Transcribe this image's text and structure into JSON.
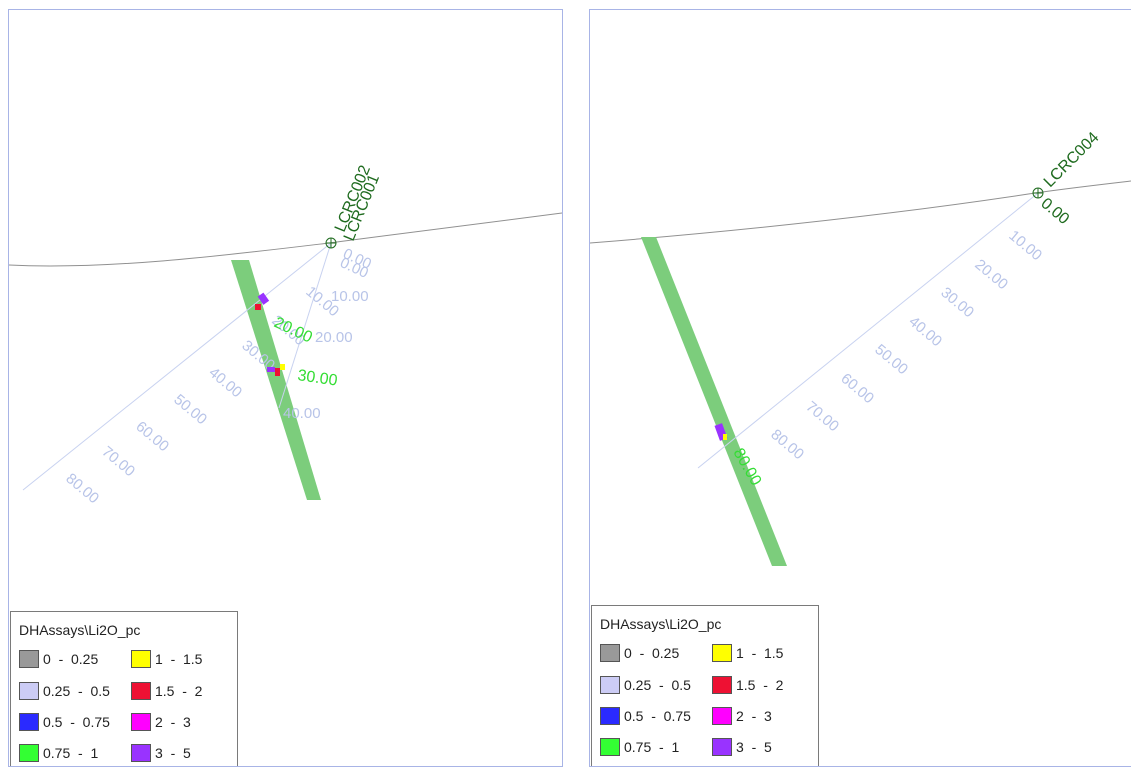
{
  "left": {
    "holes": [
      {
        "name": "LCRC002"
      },
      {
        "name": "LCRC001"
      }
    ],
    "collar_depth": "0.00",
    "collar_depth_2": "0.00",
    "depth_ticks_a": [
      "10.00",
      "20.00",
      "30.00",
      "40.00",
      "50.00",
      "60.00",
      "70.00",
      "80.00"
    ],
    "depth_ticks_b": [
      "10.00",
      "20.00",
      "40.00"
    ],
    "intercepts": [
      "20.00",
      "30.00"
    ]
  },
  "right": {
    "holes": [
      {
        "name": "LCRC004"
      }
    ],
    "collar_depth": "0.00",
    "depth_ticks": [
      "10.00",
      "20.00",
      "30.00",
      "40.00",
      "50.00",
      "60.00",
      "70.00",
      "80.00"
    ],
    "intercepts": [
      "80.00"
    ]
  },
  "legend": {
    "title": "DHAssays\\Li2O_pc",
    "items": [
      {
        "label": "0  -  0.25",
        "color": "#999999"
      },
      {
        "label": "0.25  -  0.5",
        "color": "#ccccf5"
      },
      {
        "label": "0.5  -  0.75",
        "color": "#2a2aff"
      },
      {
        "label": "0.75  -  1",
        "color": "#33ff33"
      },
      {
        "label": "1  -  1.5",
        "color": "#ffff00"
      },
      {
        "label": "1.5  -  2",
        "color": "#ee1133"
      },
      {
        "label": "2  -  3",
        "color": "#ff00ff"
      },
      {
        "label": "3  -  5",
        "color": "#9933ff"
      }
    ]
  },
  "colors": {
    "ore_zone": "#7ccd7c",
    "surface": "#909090",
    "trace": "#c8d2f0",
    "panel_border": "#a8b4e6"
  }
}
